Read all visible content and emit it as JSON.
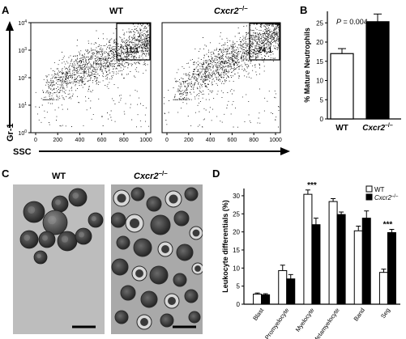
{
  "colors": {
    "ink": "#000000",
    "dot": "#111111",
    "micro_bg_wt": "#b9b9b9",
    "micro_bg_ko": "#a8a8a8",
    "cell_dark": "#3a3a3a",
    "cell_light": "#7a7a7a"
  },
  "figure": {
    "panels": {
      "A": "A",
      "B": "B",
      "C": "C",
      "D": "D"
    },
    "panel_a": {
      "wt_label": "WT",
      "ko_label_prefix": "Cxcr2",
      "ko_label_sup": "–/–",
      "y_axis_label": "Gr-1",
      "x_axis_label": "SSC",
      "y_ticks": [
        {
          "base": "10",
          "exp": "0"
        },
        {
          "base": "10",
          "exp": "1"
        },
        {
          "base": "10",
          "exp": "2"
        },
        {
          "base": "10",
          "exp": "3"
        },
        {
          "base": "10",
          "exp": "4"
        }
      ],
      "x_ticks": [
        "0",
        "200",
        "400",
        "600",
        "800",
        "1000"
      ],
      "wt_gate_value": "11.1",
      "ko_gate_value": "24.1"
    },
    "panel_c": {
      "wt_label": "WT",
      "ko_label_prefix": "Cxcr2",
      "ko_label_sup": "–/–"
    }
  },
  "chart_data": [
    {
      "type": "bar",
      "panel": "B",
      "categories": [
        "WT",
        "Cxcr2–/–"
      ],
      "category_labels": [
        {
          "text": "WT",
          "italic": false,
          "sup": ""
        },
        {
          "text": "Cxcr2",
          "italic": true,
          "sup": "–/–"
        }
      ],
      "values": [
        17.0,
        25.3
      ],
      "errors": [
        1.3,
        2.0
      ],
      "fills": [
        "#ffffff",
        "#000000"
      ],
      "ylabel": "% Mature Neutrophils",
      "ylim": [
        0,
        28
      ],
      "yticks": [
        0,
        5,
        10,
        15,
        20,
        25
      ],
      "annotation": "P = 0.004",
      "annotation_p": "P",
      "annotation_rest": " = 0.004",
      "grid": false
    },
    {
      "type": "bar",
      "panel": "D",
      "categories": [
        "Blast",
        "Promyelocyte",
        "Myelocyte",
        "Metamyelocyte",
        "Band",
        "Seg"
      ],
      "series": [
        {
          "name": "WT",
          "fill": "#ffffff",
          "values": [
            2.8,
            9.3,
            30.4,
            28.4,
            20.3,
            8.8
          ],
          "errors": [
            0.3,
            1.5,
            1.2,
            0.8,
            1.3,
            0.9
          ]
        },
        {
          "name": "Cxcr2–/–",
          "fill": "#000000",
          "values": [
            2.6,
            7.0,
            22.0,
            24.8,
            23.8,
            19.8
          ],
          "errors": [
            0.3,
            1.2,
            1.8,
            0.7,
            2.0,
            0.9
          ]
        }
      ],
      "legend": [
        {
          "text": "WT",
          "sup": "",
          "italic": false,
          "fill": "#ffffff"
        },
        {
          "text": "Cxcr2",
          "sup": "–/–",
          "italic": true,
          "fill": "#000000"
        }
      ],
      "legend_position": "top-right",
      "ylabel": "Leukocyte differentials (%)",
      "ylim": [
        0,
        32
      ],
      "yticks": [
        0,
        5,
        10,
        15,
        20,
        25,
        30
      ],
      "significance": [
        {
          "category": "Myelocyte",
          "label": "***"
        },
        {
          "category": "Seg",
          "label": "***"
        }
      ],
      "grid": false
    }
  ]
}
